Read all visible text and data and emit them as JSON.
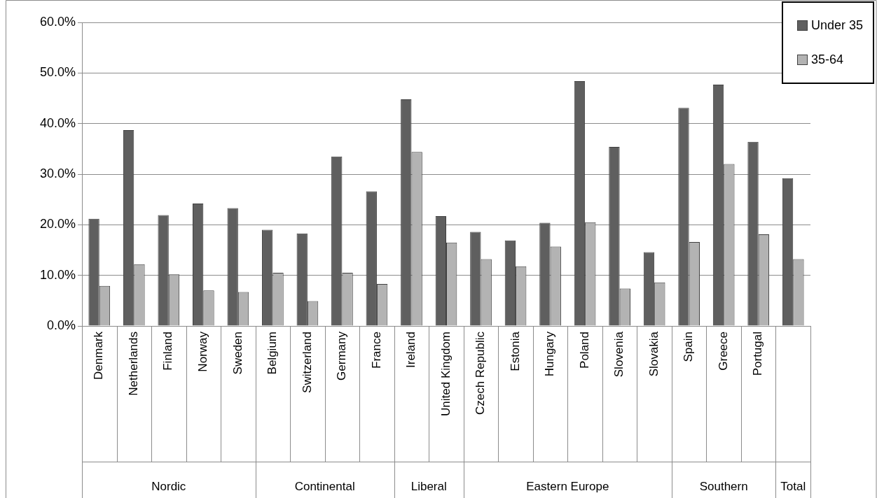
{
  "chart_data": {
    "type": "bar",
    "categories": [
      "Denmark",
      "Netherlands",
      "Finland",
      "Norway",
      "Sweden",
      "Belgium",
      "Switzerland",
      "Germany",
      "France",
      "Ireland",
      "United Kingdom",
      "Czech Republic",
      "Estonia",
      "Hungary",
      "Poland",
      "Slovenia",
      "Slovakia",
      "Spain",
      "Greece",
      "Portugal",
      null
    ],
    "series": [
      {
        "name": "Under 35",
        "color": "#5f5f5f",
        "values": [
          21.2,
          38.7,
          21.9,
          24.2,
          23.3,
          19.0,
          18.3,
          33.5,
          26.6,
          44.8,
          21.7,
          18.6,
          16.9,
          20.4,
          48.4,
          35.4,
          14.6,
          43.1,
          47.7,
          36.4,
          29.2
        ]
      },
      {
        "name": "35-64",
        "color": "#b3b3b3",
        "values": [
          7.9,
          12.2,
          10.2,
          7.0,
          6.7,
          10.5,
          4.9,
          10.5,
          8.3,
          34.4,
          16.5,
          13.2,
          11.8,
          15.7,
          20.5,
          7.4,
          8.6,
          16.6,
          32.0,
          18.1,
          13.2
        ]
      }
    ],
    "ylim": [
      0,
      60
    ],
    "yticks": [
      {
        "value": 0,
        "label": "0.0%"
      },
      {
        "value": 10,
        "label": "10.0%"
      },
      {
        "value": 20,
        "label": "20.0%"
      },
      {
        "value": 30,
        "label": "30.0%"
      },
      {
        "value": 40,
        "label": "40.0%"
      },
      {
        "value": 50,
        "label": "50.0%"
      },
      {
        "value": 60,
        "label": "60.0%"
      }
    ],
    "annotations": [
      "Nordic",
      "Continental",
      "Liberal",
      "Eastern Europe",
      "Southern",
      "Total"
    ],
    "grid": "y",
    "legend": "top right"
  }
}
